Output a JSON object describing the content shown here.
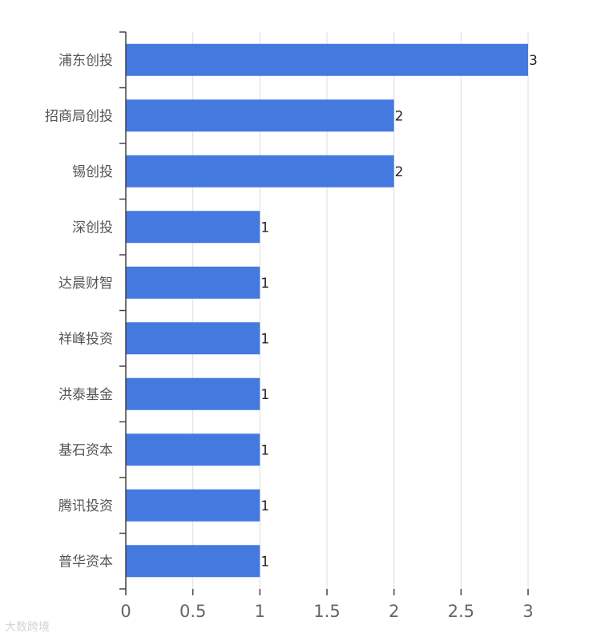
{
  "chart_data": {
    "type": "bar",
    "orientation": "horizontal",
    "categories": [
      "浦东创投",
      "招商局创投",
      "锡创投",
      "深创投",
      "达晨财智",
      "祥峰投资",
      "洪泰基金",
      "基石资本",
      "腾讯投资",
      "普华资本"
    ],
    "values": [
      3,
      2,
      2,
      1,
      1,
      1,
      1,
      1,
      1,
      1
    ],
    "xlim": [
      0,
      3
    ],
    "xticks": [
      0,
      0.5,
      1,
      1.5,
      2,
      2.5,
      3
    ],
    "xtick_labels": [
      "0",
      "0.5",
      "1",
      "1.5",
      "2",
      "2.5",
      "3"
    ],
    "grid": "vertical",
    "data_labels": true,
    "colors": {
      "bar": "#4479e0"
    },
    "title": "",
    "xlabel": "",
    "ylabel": ""
  },
  "watermark": {
    "text": "大数跨境"
  }
}
